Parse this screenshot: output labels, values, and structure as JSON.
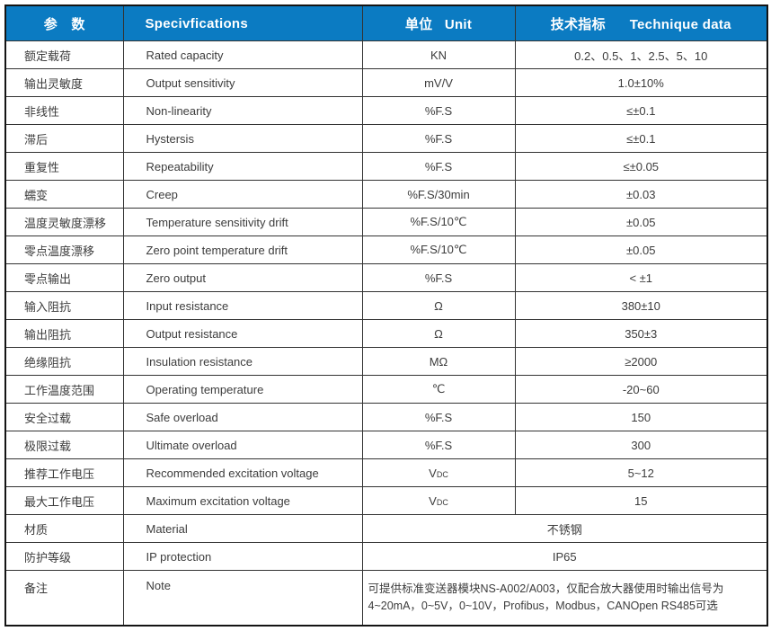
{
  "colors": {
    "header_bg": "#0b7bc2",
    "header_text": "#ffffff",
    "body_text": "#3c3c3c",
    "border": "#333333",
    "outer_border": "#141414"
  },
  "table": {
    "header": {
      "col1": "参　数",
      "col2": "Specivfications",
      "col3": "单位   Unit",
      "col4": "技术指标      Technique data"
    },
    "rows": [
      {
        "cn": "额定载荷",
        "en": "Rated capacity",
        "unit": "KN",
        "value": "0.2、0.5、1、2.5、5、10"
      },
      {
        "cn": "输出灵敏度",
        "en": "Output sensitivity",
        "unit": "mV/V",
        "value": "1.0±10%"
      },
      {
        "cn": "非线性",
        "en": "Non-linearity",
        "unit": "%F.S",
        "value": "≤±0.1"
      },
      {
        "cn": "滞后",
        "en": "Hystersis",
        "unit": "%F.S",
        "value": "≤±0.1"
      },
      {
        "cn": "重复性",
        "en": "Repeatability",
        "unit": "%F.S",
        "value": "≤±0.05"
      },
      {
        "cn": "蠕变",
        "en": "Creep",
        "unit": "%F.S/30min",
        "value": "±0.03"
      },
      {
        "cn": "温度灵敏度漂移",
        "en": "Temperature sensitivity drift",
        "unit": "%F.S/10℃",
        "value": "±0.05"
      },
      {
        "cn": "零点温度漂移",
        "en": "Zero point temperature drift",
        "unit": "%F.S/10℃",
        "value": "±0.05"
      },
      {
        "cn": "零点输出",
        "en": "Zero output",
        "unit": "%F.S",
        "value": "< ±1"
      },
      {
        "cn": "输入阻抗",
        "en": "Input resistance",
        "unit": "Ω",
        "value": "380±10"
      },
      {
        "cn": "输出阻抗",
        "en": "Output resistance",
        "unit": "Ω",
        "value": "350±3"
      },
      {
        "cn": "绝缘阻抗",
        "en": "Insulation resistance",
        "unit": "MΩ",
        "value": "≥2000"
      },
      {
        "cn": "工作温度范围",
        "en": "Operating temperature",
        "unit": "℃",
        "value": "-20~60"
      },
      {
        "cn": "安全过载",
        "en": "Safe overload",
        "unit": "%F.S",
        "value": "150"
      },
      {
        "cn": "极限过载",
        "en": "Ultimate overload",
        "unit": "%F.S",
        "value": "300"
      },
      {
        "cn": "推荐工作电压",
        "en": "Recommended excitation voltage",
        "unit": "V",
        "unit_sub": "DC",
        "value": "5~12"
      },
      {
        "cn": "最大工作电压",
        "en": "Maximum excitation voltage",
        "unit": "V",
        "unit_sub": "DC",
        "value": "15"
      },
      {
        "cn": "材质",
        "en": "Material",
        "merged": "不锈钢"
      },
      {
        "cn": "防护等级",
        "en": "IP protection",
        "merged": "IP65"
      },
      {
        "cn": "备注",
        "en": "Note",
        "note": true,
        "merged_lines": [
          "可提供标准变送器模块NS-A002/A003，仅配合放大器使用时输出信号为",
          "4~20mA，0~5V，0~10V，Profibus，Modbus，CANOpen RS485可选"
        ]
      }
    ]
  }
}
